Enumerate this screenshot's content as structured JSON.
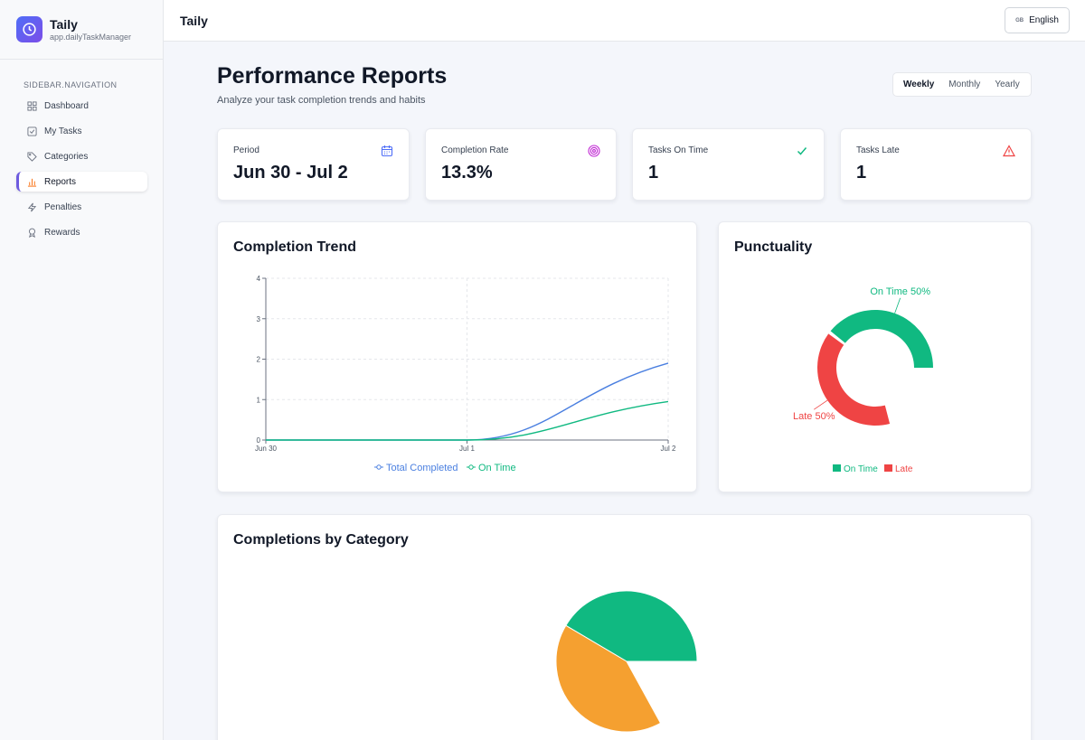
{
  "app": {
    "name": "Taily",
    "subtitle": "app.dailyTaskManager"
  },
  "sidebar": {
    "heading": "SIDEBAR.NAVIGATION",
    "items": [
      {
        "label": "Dashboard",
        "icon": "grid-icon"
      },
      {
        "label": "My Tasks",
        "icon": "checkbox-icon"
      },
      {
        "label": "Categories",
        "icon": "tag-icon"
      },
      {
        "label": "Reports",
        "icon": "bar-chart-icon",
        "active": true
      },
      {
        "label": "Penalties",
        "icon": "bolt-icon"
      },
      {
        "label": "Rewards",
        "icon": "award-icon"
      }
    ]
  },
  "topbar": {
    "title": "Taily",
    "language_flag": "GB",
    "language": "English"
  },
  "header": {
    "title": "Performance Reports",
    "subtitle": "Analyze your task completion trends and habits",
    "ranges": [
      "Weekly",
      "Monthly",
      "Yearly"
    ],
    "active_range": "Weekly"
  },
  "stats": [
    {
      "label": "Period",
      "value": "Jun 30 - Jul 2",
      "icon": "calendar-icon",
      "color": "#4f6ef7"
    },
    {
      "label": "Completion Rate",
      "value": "13.3%",
      "icon": "target-icon",
      "color": "#c026d3"
    },
    {
      "label": "Tasks On Time",
      "value": "1",
      "icon": "check-icon",
      "color": "#10b981"
    },
    {
      "label": "Tasks Late",
      "value": "1",
      "icon": "warning-icon",
      "color": "#ef4444"
    }
  ],
  "chart_data": [
    {
      "type": "line",
      "title": "Completion Trend",
      "x": [
        "Jun 30",
        "Jul 1",
        "Jul 2"
      ],
      "ylim": [
        0,
        4
      ],
      "yticks": [
        "0",
        "1",
        "2",
        "3",
        "4"
      ],
      "grid": true,
      "legend": "bottom",
      "series": [
        {
          "name": "Total Completed",
          "values": [
            0,
            0,
            1.9
          ],
          "color": "#4a7fe0"
        },
        {
          "name": "On Time",
          "values": [
            0,
            0,
            0.95
          ],
          "color": "#10b981"
        }
      ]
    },
    {
      "type": "pie",
      "title": "Punctuality",
      "donut": true,
      "legend": "bottom",
      "slices": [
        {
          "name": "On Time",
          "value": 50,
          "label": "On Time 50%",
          "color": "#10b981"
        },
        {
          "name": "Late",
          "value": 50,
          "label": "Late 50%",
          "color": "#ef4444"
        }
      ]
    },
    {
      "type": "pie",
      "title": "Completions by Category",
      "slices": [
        {
          "value": 50,
          "color": "#10b981"
        },
        {
          "value": 50,
          "color": "#f5a030"
        }
      ]
    }
  ]
}
